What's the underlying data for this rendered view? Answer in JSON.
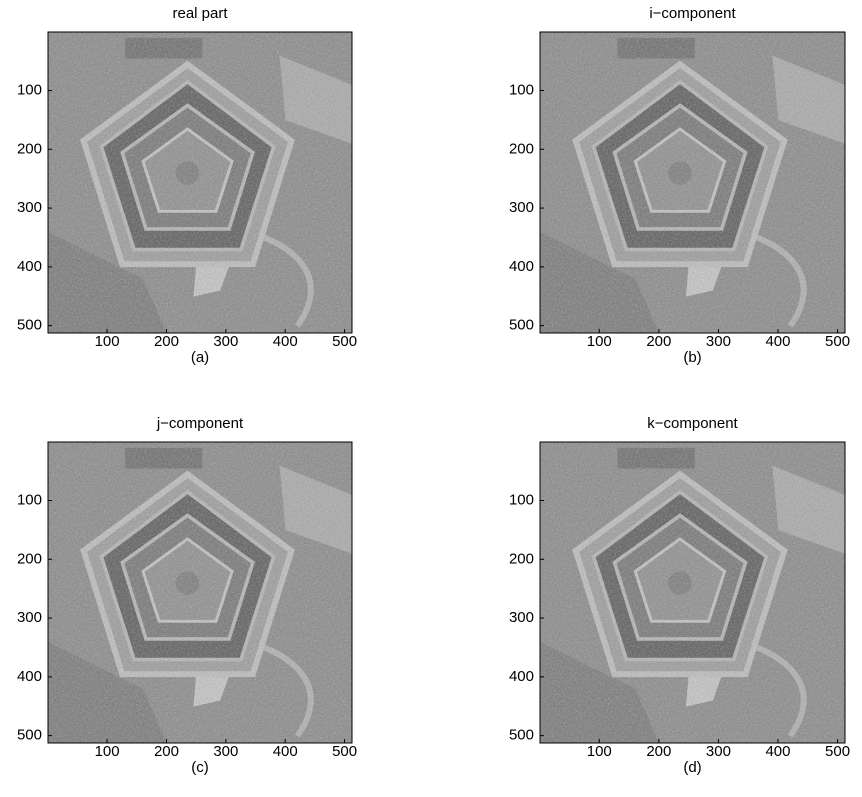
{
  "chart_data": [
    {
      "type": "image",
      "title": "real part",
      "xlabel": "(a)",
      "xlim": [
        0.5,
        512.5
      ],
      "ylim": [
        512.5,
        0.5
      ],
      "xticks": [
        100,
        200,
        300,
        400,
        500
      ],
      "yticks": [
        100,
        200,
        300,
        400,
        500
      ]
    },
    {
      "type": "image",
      "title": "i−component",
      "xlabel": "(b)",
      "xlim": [
        0.5,
        512.5
      ],
      "ylim": [
        512.5,
        0.5
      ],
      "xticks": [
        100,
        200,
        300,
        400,
        500
      ],
      "yticks": [
        100,
        200,
        300,
        400,
        500
      ]
    },
    {
      "type": "image",
      "title": "j−component",
      "xlabel": "(c)",
      "xlim": [
        0.5,
        512.5
      ],
      "ylim": [
        512.5,
        0.5
      ],
      "xticks": [
        100,
        200,
        300,
        400,
        500
      ],
      "yticks": [
        100,
        200,
        300,
        400,
        500
      ]
    },
    {
      "type": "image",
      "title": "k−component",
      "xlabel": "(d)",
      "xlim": [
        0.5,
        512.5
      ],
      "ylim": [
        512.5,
        0.5
      ],
      "xticks": [
        100,
        200,
        300,
        400,
        500
      ],
      "yticks": [
        100,
        200,
        300,
        400,
        500
      ]
    }
  ]
}
